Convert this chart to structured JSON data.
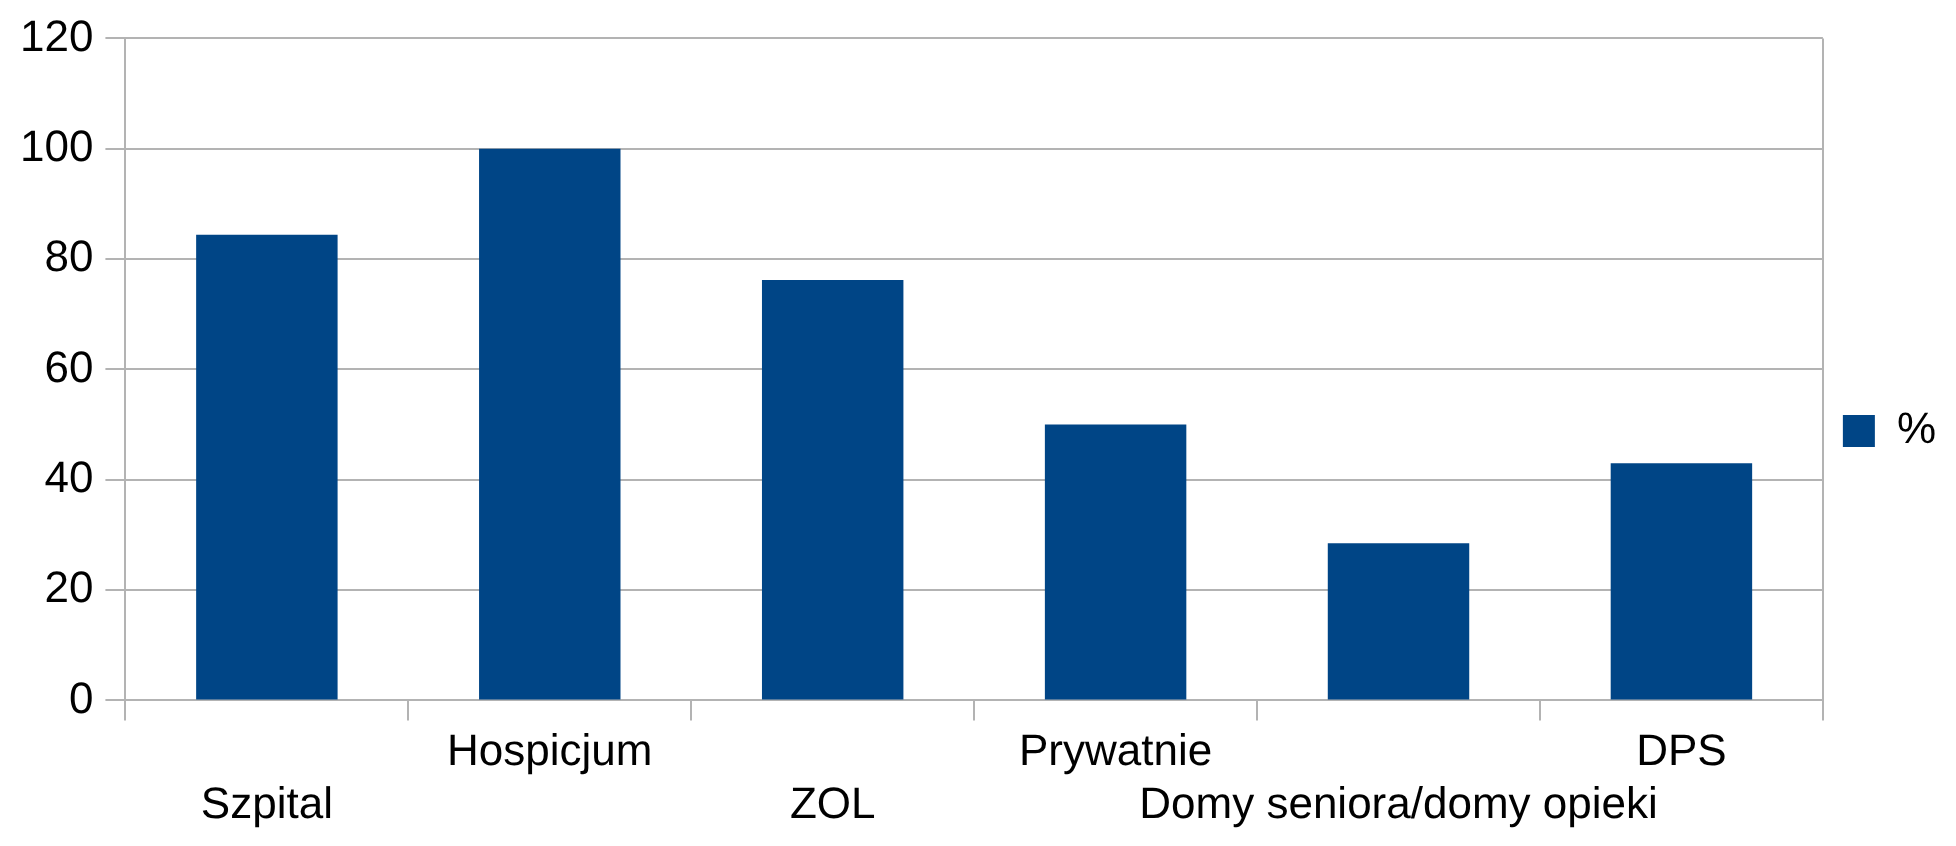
{
  "chart_data": {
    "type": "bar",
    "categories": [
      "Szpital",
      "Hospicjum",
      "ZOL",
      "Prywatnie",
      "Domy seniora/domy opieki",
      "DPS"
    ],
    "series": [
      {
        "name": "%",
        "color": "#004586",
        "values": [
          84.4,
          100,
          76.2,
          50,
          28.5,
          43
        ]
      }
    ],
    "ylim": [
      0,
      120
    ],
    "yticks": [
      0,
      20,
      40,
      60,
      80,
      100,
      120
    ],
    "grid": "y",
    "legend": "right"
  }
}
